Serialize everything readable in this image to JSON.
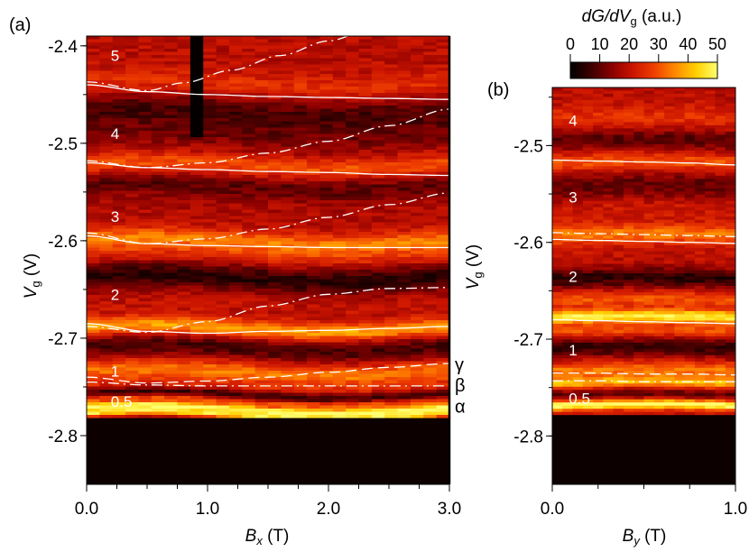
{
  "chart_data": [
    {
      "type": "heatmap",
      "panel_label": "(a)",
      "xlabel_main": "B",
      "xlabel_sub": "x",
      "xlabel_unit": " (T)",
      "ylabel_main": "V",
      "ylabel_sub": "g",
      "ylabel_unit": " (V)",
      "xlim": [
        0.0,
        3.0
      ],
      "ylim": [
        -2.85,
        -2.39
      ],
      "x_ticks": [
        {
          "v": 0,
          "label": "0.0"
        },
        {
          "v": 1,
          "label": "1.0"
        },
        {
          "v": 2,
          "label": "2.0"
        },
        {
          "v": 3,
          "label": "3.0"
        }
      ],
      "y_ticks": [
        {
          "v": -2.4,
          "label": "-2.4"
        },
        {
          "v": -2.5,
          "label": "-2.5"
        },
        {
          "v": -2.6,
          "label": "-2.6"
        },
        {
          "v": -2.7,
          "label": "-2.7"
        },
        {
          "v": -2.8,
          "label": "-2.8"
        }
      ],
      "cutoff_y": -2.782,
      "dark_stripe": {
        "x0": 0.86,
        "x1": 0.94,
        "ytop": -2.39,
        "ybottom": -2.495
      },
      "bands": [
        {
          "y": -2.44,
          "w": 0.012,
          "val": 26
        },
        {
          "y": -2.47,
          "w": 0.018,
          "val": 8
        },
        {
          "y": -2.495,
          "w": 0.012,
          "val": 14
        },
        {
          "y": -2.523,
          "w": 0.01,
          "val": 30
        },
        {
          "y": -2.545,
          "w": 0.013,
          "val": 10
        },
        {
          "y": -2.575,
          "w": 0.012,
          "val": 18
        },
        {
          "y": -2.6,
          "w": 0.01,
          "val": 34
        },
        {
          "y": -2.615,
          "w": 0.01,
          "val": 26
        },
        {
          "y": -2.638,
          "w": 0.014,
          "val": 5
        },
        {
          "y": -2.665,
          "w": 0.012,
          "val": 20
        },
        {
          "y": -2.69,
          "w": 0.009,
          "val": 38
        },
        {
          "y": -2.71,
          "w": 0.011,
          "val": 8
        },
        {
          "y": -2.735,
          "w": 0.01,
          "val": 34
        },
        {
          "y": -2.75,
          "w": 0.006,
          "val": 24
        },
        {
          "y": -2.758,
          "w": 0.005,
          "val": 6
        },
        {
          "y": -2.765,
          "w": 0.004,
          "val": 30
        },
        {
          "y": -2.773,
          "w": 0.004,
          "val": 50
        },
        {
          "y": -2.779,
          "w": 0.003,
          "val": 44
        }
      ],
      "labels": [
        {
          "text": "5",
          "x": 0.2,
          "y": -2.41
        },
        {
          "text": "4",
          "x": 0.2,
          "y": -2.49
        },
        {
          "text": "3",
          "x": 0.2,
          "y": -2.575
        },
        {
          "text": "2",
          "x": 0.2,
          "y": -2.655
        },
        {
          "text": "1",
          "x": 0.2,
          "y": -2.734
        },
        {
          "text": "0.5",
          "x": 0.2,
          "y": -2.765
        }
      ],
      "side_labels": [
        {
          "text": "γ",
          "y": -2.727
        },
        {
          "text": "β",
          "y": -2.748
        },
        {
          "text": "α",
          "y": -2.77
        }
      ],
      "curves": [
        {
          "style": "solid",
          "x": [
            0,
            0.5,
            1,
            1.5,
            2,
            2.5,
            3
          ],
          "y": [
            -2.44,
            -2.447,
            -2.45,
            -2.452,
            -2.453,
            -2.454,
            -2.455
          ]
        },
        {
          "style": "solid",
          "x": [
            0,
            0.5,
            1,
            1.5,
            2,
            2.5,
            3
          ],
          "y": [
            -2.52,
            -2.525,
            -2.527,
            -2.529,
            -2.53,
            -2.532,
            -2.533
          ]
        },
        {
          "style": "solid",
          "x": [
            0,
            0.5,
            1,
            1.5,
            2,
            2.5,
            3
          ],
          "y": [
            -2.595,
            -2.603,
            -2.605,
            -2.606,
            -2.607,
            -2.607,
            -2.607
          ]
        },
        {
          "style": "solid",
          "x": [
            0,
            0.5,
            1,
            1.5,
            2,
            2.5,
            3
          ],
          "y": [
            -2.685,
            -2.693,
            -2.695,
            -2.693,
            -2.692,
            -2.69,
            -2.688
          ]
        },
        {
          "style": "dashdot",
          "x": [
            0,
            0.5,
            0.8,
            1.2,
            1.6,
            2.0,
            2.35
          ],
          "y": [
            -2.437,
            -2.446,
            -2.438,
            -2.425,
            -2.41,
            -2.395,
            -2.383
          ]
        },
        {
          "style": "dashdot",
          "x": [
            0,
            0.5,
            1,
            1.5,
            2,
            2.5,
            3
          ],
          "y": [
            -2.518,
            -2.525,
            -2.52,
            -2.51,
            -2.498,
            -2.482,
            -2.465
          ]
        },
        {
          "style": "dashdot",
          "x": [
            0,
            0.5,
            1,
            1.5,
            2,
            2.5,
            3
          ],
          "y": [
            -2.592,
            -2.603,
            -2.598,
            -2.588,
            -2.576,
            -2.563,
            -2.551
          ]
        },
        {
          "style": "dashdot",
          "x": [
            0,
            0.5,
            1,
            1.5,
            2,
            2.5,
            3
          ],
          "y": [
            -2.688,
            -2.694,
            -2.683,
            -2.667,
            -2.655,
            -2.649,
            -2.648
          ]
        },
        {
          "style": "dashed",
          "x": [
            0,
            0.5,
            1,
            1.5,
            2,
            2.5,
            3
          ],
          "y": [
            -2.74,
            -2.746,
            -2.744,
            -2.74,
            -2.735,
            -2.73,
            -2.726
          ]
        },
        {
          "style": "dashdot",
          "x": [
            0,
            0.5,
            1,
            1.5,
            2,
            2.5,
            3
          ],
          "y": [
            -2.745,
            -2.748,
            -2.749,
            -2.749,
            -2.749,
            -2.749,
            -2.749
          ]
        }
      ]
    },
    {
      "type": "heatmap",
      "panel_label": "(b)",
      "xlabel_main": "B",
      "xlabel_sub": "y",
      "xlabel_unit": " (T)",
      "ylabel_main": "V",
      "ylabel_sub": "g",
      "ylabel_unit": " (V)",
      "xlim": [
        0.0,
        1.0
      ],
      "ylim": [
        -2.85,
        -2.44
      ],
      "x_ticks": [
        {
          "v": 0,
          "label": "0.0"
        },
        {
          "v": 1,
          "label": "1.0"
        }
      ],
      "y_ticks": [
        {
          "v": -2.5,
          "label": "-2.5"
        },
        {
          "v": -2.6,
          "label": "-2.6"
        },
        {
          "v": -2.7,
          "label": "-2.7"
        },
        {
          "v": -2.8,
          "label": "-2.8"
        }
      ],
      "cutoff_y": -2.778,
      "bands": [
        {
          "y": -2.475,
          "w": 0.012,
          "val": 26
        },
        {
          "y": -2.497,
          "w": 0.012,
          "val": 10
        },
        {
          "y": -2.52,
          "w": 0.01,
          "val": 30
        },
        {
          "y": -2.545,
          "w": 0.013,
          "val": 10
        },
        {
          "y": -2.57,
          "w": 0.012,
          "val": 22
        },
        {
          "y": -2.595,
          "w": 0.01,
          "val": 34
        },
        {
          "y": -2.62,
          "w": 0.012,
          "val": 20
        },
        {
          "y": -2.64,
          "w": 0.01,
          "val": 5
        },
        {
          "y": -2.662,
          "w": 0.008,
          "val": 30
        },
        {
          "y": -2.68,
          "w": 0.007,
          "val": 48
        },
        {
          "y": -2.695,
          "w": 0.006,
          "val": 30
        },
        {
          "y": -2.712,
          "w": 0.009,
          "val": 6
        },
        {
          "y": -2.735,
          "w": 0.008,
          "val": 34
        },
        {
          "y": -2.748,
          "w": 0.006,
          "val": 40
        },
        {
          "y": -2.76,
          "w": 0.006,
          "val": 10
        },
        {
          "y": -2.771,
          "w": 0.005,
          "val": 52
        }
      ],
      "labels": [
        {
          "text": "4",
          "x": 0.09,
          "y": -2.474
        },
        {
          "text": "3",
          "x": 0.09,
          "y": -2.553
        },
        {
          "text": "2",
          "x": 0.09,
          "y": -2.635
        },
        {
          "text": "1",
          "x": 0.09,
          "y": -2.711
        },
        {
          "text": "0.5",
          "x": 0.09,
          "y": -2.761
        }
      ],
      "curves": [
        {
          "style": "solid",
          "x": [
            0,
            0.25,
            0.5,
            0.75,
            1
          ],
          "y": [
            -2.515,
            -2.516,
            -2.517,
            -2.518,
            -2.52
          ]
        },
        {
          "style": "dashdot",
          "x": [
            0,
            0.25,
            0.5,
            0.75,
            1
          ],
          "y": [
            -2.59,
            -2.591,
            -2.592,
            -2.593,
            -2.594
          ]
        },
        {
          "style": "solid",
          "x": [
            0,
            0.25,
            0.5,
            0.75,
            1
          ],
          "y": [
            -2.597,
            -2.598,
            -2.599,
            -2.6,
            -2.601
          ]
        },
        {
          "style": "solid",
          "x": [
            0,
            0.25,
            0.5,
            0.75,
            1
          ],
          "y": [
            -2.68,
            -2.681,
            -2.682,
            -2.683,
            -2.684
          ]
        },
        {
          "style": "dashed",
          "x": [
            0,
            0.25,
            0.5,
            0.75,
            1
          ],
          "y": [
            -2.735,
            -2.735,
            -2.736,
            -2.736,
            -2.737
          ]
        },
        {
          "style": "dashdot",
          "x": [
            0,
            0.25,
            0.5,
            0.75,
            1
          ],
          "y": [
            -2.743,
            -2.743,
            -2.744,
            -2.744,
            -2.744
          ]
        }
      ]
    }
  ],
  "colorbar": {
    "title_main": "dG/dV",
    "title_sub": "g",
    "title_unit": " (a.u.)",
    "min": 0,
    "max": 50,
    "ticks": [
      {
        "v": 0,
        "label": "0"
      },
      {
        "v": 10,
        "label": "10"
      },
      {
        "v": 20,
        "label": "20"
      },
      {
        "v": 30,
        "label": "30"
      },
      {
        "v": 40,
        "label": "40"
      },
      {
        "v": 50,
        "label": "50"
      }
    ],
    "stops": [
      "#000000",
      "#3d0000",
      "#8c0000",
      "#cc1500",
      "#f04000",
      "#ff8a00",
      "#ffd000",
      "#ffff70"
    ]
  }
}
